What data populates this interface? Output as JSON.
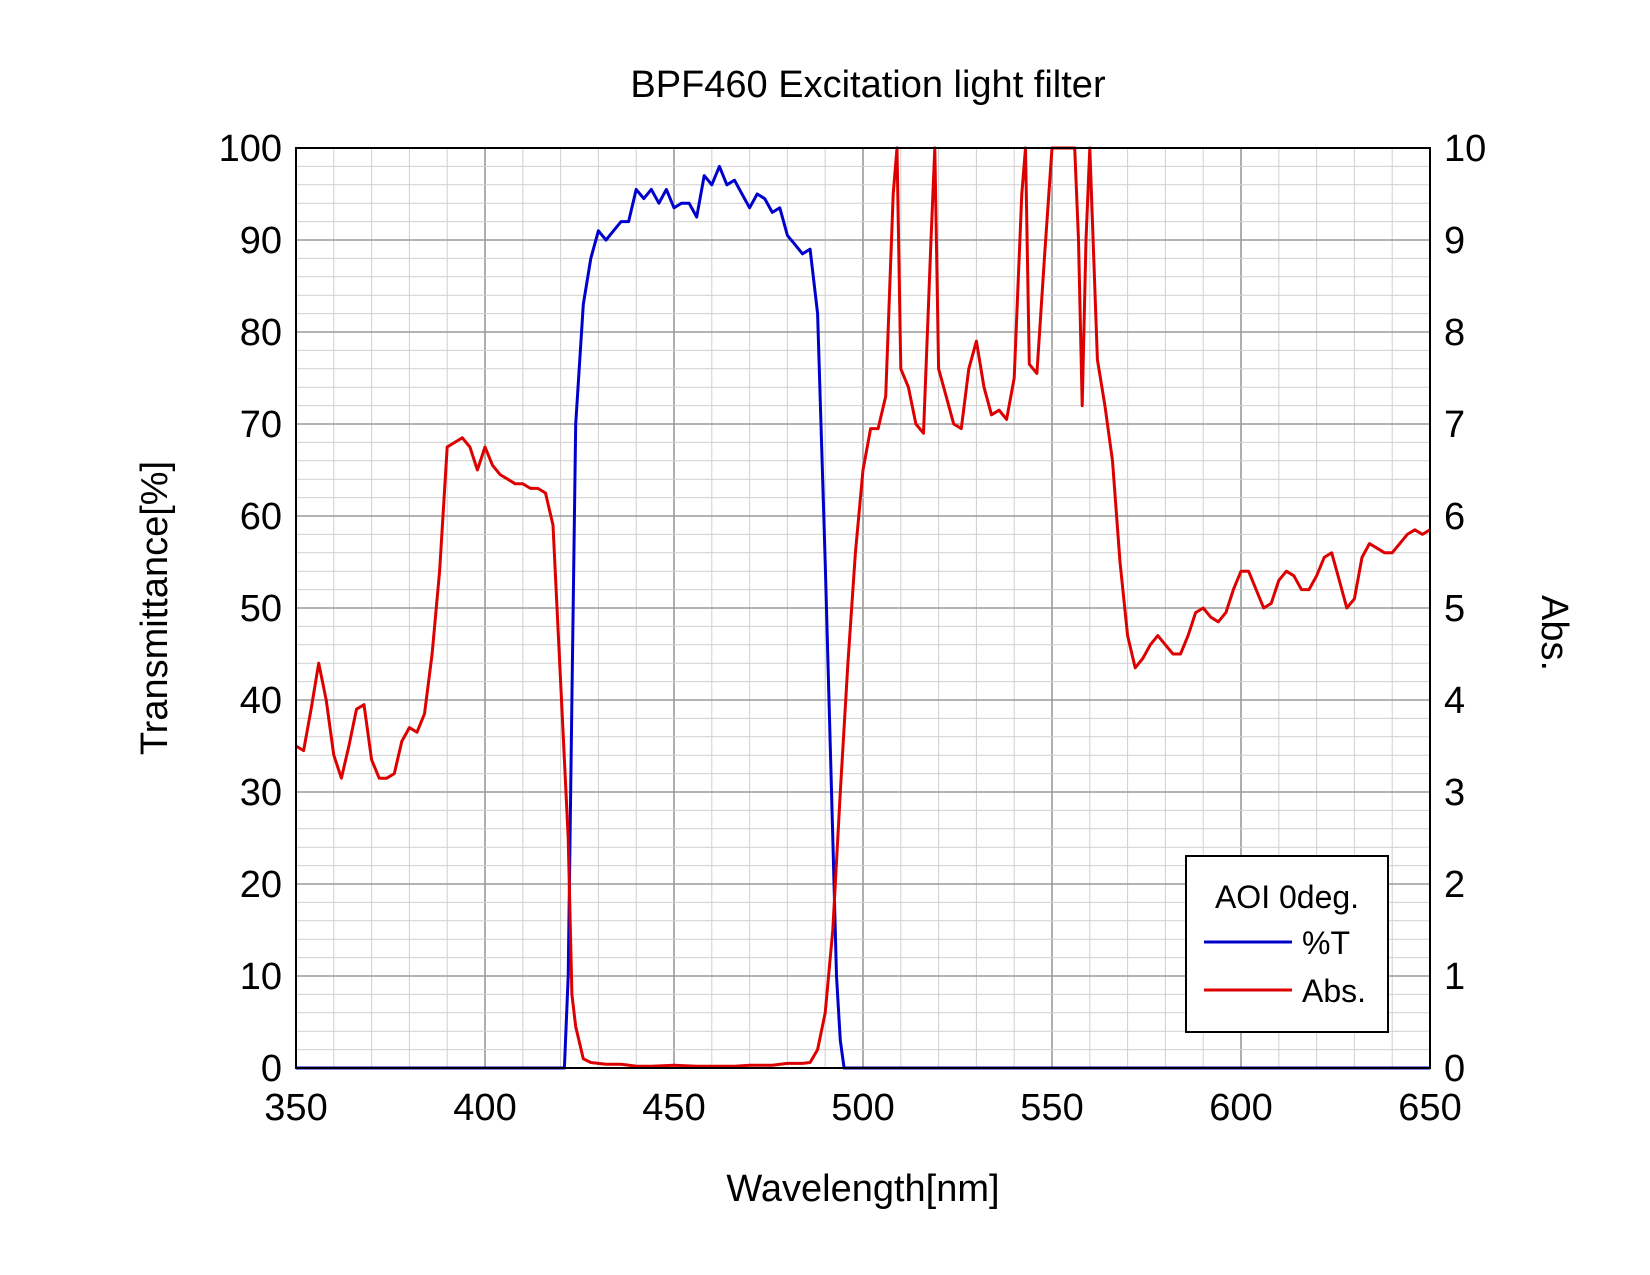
{
  "chart_data": {
    "type": "line",
    "title": "BPF460 Excitation light filter",
    "xlabel": "Wavelength[nm]",
    "ylabel": "Transmittance[%]",
    "y2label": "Abs.",
    "xlim": [
      350,
      650
    ],
    "ylim": [
      0,
      100
    ],
    "y2lim": [
      0,
      10
    ],
    "x_ticks": [
      350,
      400,
      450,
      500,
      550,
      600,
      650
    ],
    "y_ticks": [
      0,
      10,
      20,
      30,
      40,
      50,
      60,
      70,
      80,
      90,
      100
    ],
    "y2_ticks": [
      0,
      1,
      2,
      3,
      4,
      5,
      6,
      7,
      8,
      9,
      10
    ],
    "grid": true,
    "legend": {
      "position": "bottom-right",
      "title": "AOI 0deg.",
      "entries": [
        "%T",
        "Abs."
      ]
    },
    "colors": {
      "t": "#0000cc",
      "abs": "#dd0000"
    },
    "series": [
      {
        "name": "%T",
        "axis": "left",
        "color": "#0000cc",
        "x": [
          350,
          421,
          422,
          423,
          424,
          426,
          428,
          430,
          432,
          434,
          436,
          438,
          440,
          442,
          444,
          446,
          448,
          450,
          452,
          454,
          456,
          458,
          460,
          462,
          464,
          466,
          468,
          470,
          472,
          474,
          476,
          478,
          480,
          482,
          484,
          486,
          488,
          490,
          492,
          493,
          494,
          495,
          650
        ],
        "y": [
          0,
          0,
          10,
          40,
          70,
          83,
          88,
          91,
          90,
          91,
          92,
          92,
          95.5,
          94.5,
          95.5,
          94,
          95.5,
          93.5,
          94,
          94,
          92.5,
          97,
          96,
          98,
          96,
          96.5,
          95,
          93.5,
          95,
          94.5,
          93,
          93.5,
          90.5,
          89.5,
          88.5,
          89,
          82,
          55,
          25,
          10,
          3,
          0,
          0
        ]
      },
      {
        "name": "Abs.",
        "axis": "right",
        "color": "#dd0000",
        "x": [
          350,
          352,
          354,
          356,
          358,
          360,
          362,
          364,
          366,
          368,
          370,
          372,
          374,
          376,
          378,
          380,
          382,
          384,
          386,
          388,
          390,
          392,
          394,
          396,
          398,
          400,
          402,
          404,
          406,
          408,
          410,
          412,
          414,
          416,
          418,
          420,
          422,
          423,
          424,
          426,
          428,
          430,
          432,
          436,
          440,
          444,
          450,
          456,
          460,
          466,
          470,
          476,
          480,
          484,
          486,
          488,
          490,
          492,
          494,
          496,
          498,
          500,
          502,
          504,
          506,
          508,
          509,
          510,
          512,
          514,
          516,
          518,
          519,
          520,
          522,
          524,
          526,
          528,
          530,
          532,
          534,
          536,
          538,
          540,
          542,
          543,
          544,
          546,
          548,
          550,
          552,
          554,
          556,
          557,
          558,
          559,
          560,
          562,
          564,
          566,
          568,
          570,
          572,
          574,
          576,
          578,
          580,
          582,
          584,
          586,
          588,
          590,
          592,
          594,
          596,
          598,
          600,
          602,
          604,
          606,
          608,
          610,
          612,
          614,
          616,
          618,
          620,
          622,
          624,
          626,
          628,
          630,
          632,
          634,
          636,
          638,
          640,
          642,
          644,
          646,
          648,
          650
        ],
        "y": [
          3.5,
          3.45,
          3.9,
          4.4,
          4.0,
          3.4,
          3.15,
          3.5,
          3.9,
          3.95,
          3.35,
          3.15,
          3.15,
          3.2,
          3.55,
          3.7,
          3.65,
          3.85,
          4.5,
          5.4,
          6.75,
          6.8,
          6.85,
          6.75,
          6.5,
          6.75,
          6.55,
          6.45,
          6.4,
          6.35,
          6.35,
          6.3,
          6.3,
          6.25,
          5.9,
          4.2,
          2.5,
          0.8,
          0.45,
          0.1,
          0.06,
          0.05,
          0.04,
          0.04,
          0.02,
          0.02,
          0.03,
          0.02,
          0.02,
          0.02,
          0.03,
          0.03,
          0.05,
          0.05,
          0.06,
          0.2,
          0.6,
          1.5,
          3.0,
          4.4,
          5.6,
          6.5,
          6.95,
          6.95,
          7.3,
          9.5,
          10,
          7.6,
          7.4,
          7.0,
          6.9,
          9.0,
          10,
          7.6,
          7.3,
          7.0,
          6.95,
          7.6,
          7.9,
          7.4,
          7.1,
          7.15,
          7.05,
          7.5,
          9.5,
          10,
          7.65,
          7.55,
          8.8,
          10,
          10,
          10,
          10,
          9.0,
          7.2,
          9.0,
          10,
          7.7,
          7.2,
          6.6,
          5.5,
          4.7,
          4.35,
          4.45,
          4.6,
          4.7,
          4.6,
          4.5,
          4.5,
          4.7,
          4.95,
          5.0,
          4.9,
          4.85,
          4.95,
          5.2,
          5.4,
          5.4,
          5.2,
          5.0,
          5.05,
          5.3,
          5.4,
          5.35,
          5.2,
          5.2,
          5.35,
          5.55,
          5.6,
          5.3,
          5.0,
          5.1,
          5.55,
          5.7,
          5.65,
          5.6,
          5.6,
          5.7,
          5.8,
          5.85,
          5.8,
          5.85
        ]
      }
    ]
  }
}
